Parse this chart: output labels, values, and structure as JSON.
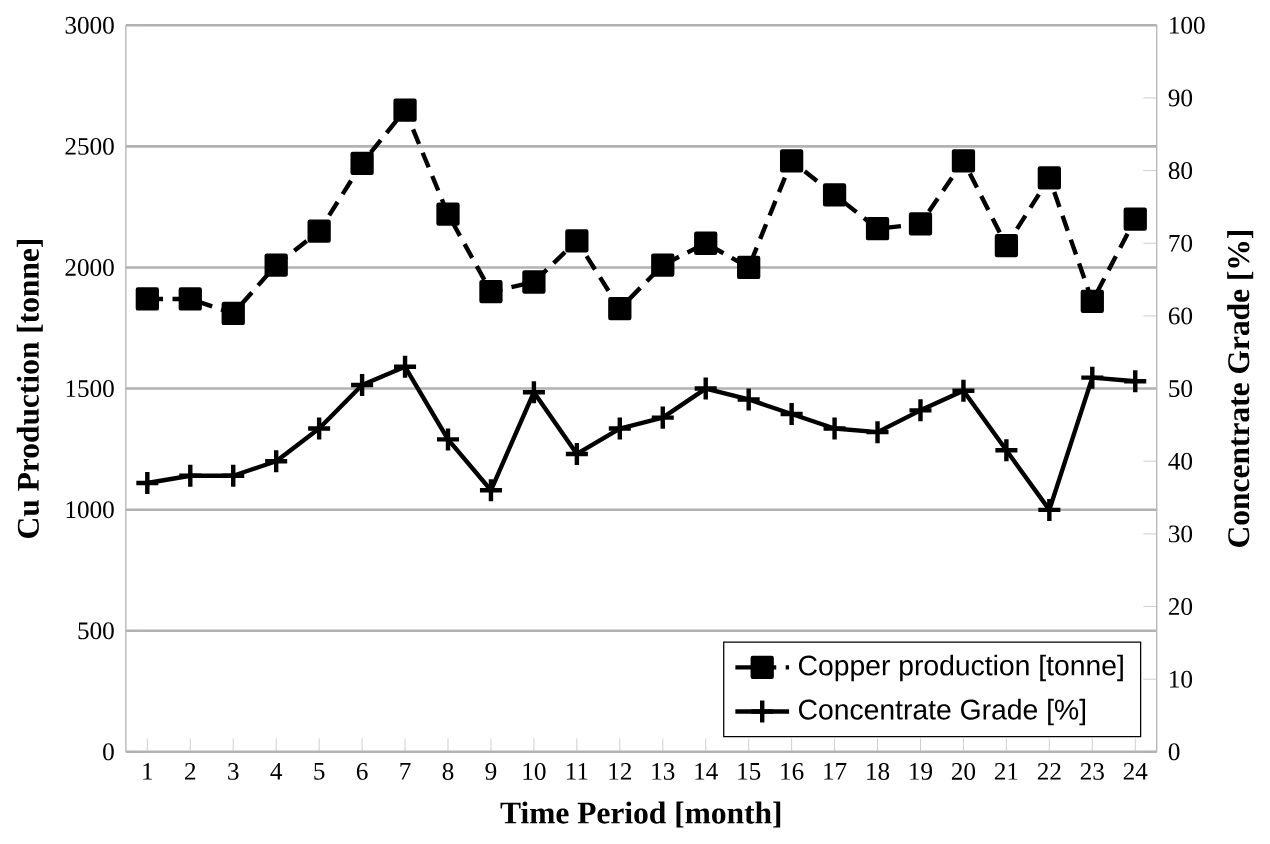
{
  "chart_data": {
    "type": "line",
    "xlabel": "Time Period [month]",
    "ylabel": "Cu Production [tonne]",
    "y2label": "Concentrate Grade [%]",
    "categories": [
      "1",
      "2",
      "3",
      "4",
      "5",
      "6",
      "7",
      "8",
      "9",
      "10",
      "11",
      "12",
      "13",
      "14",
      "15",
      "16",
      "17",
      "18",
      "19",
      "20",
      "21",
      "22",
      "23",
      "24"
    ],
    "series": [
      {
        "name": "Copper production [tonne]",
        "color": "#000000",
        "marker": "square",
        "line_style": "dashed",
        "values": [
          1870,
          1870,
          1810,
          2010,
          2150,
          2430,
          2650,
          2220,
          1900,
          1940,
          2110,
          1830,
          2010,
          2100,
          2000,
          2440,
          2300,
          2160,
          2180,
          2440,
          2090,
          2370,
          1860,
          2200
        ]
      },
      {
        "name": "Concentrate Grade [%]",
        "color": "#000000",
        "marker": "cross",
        "line_style": "solid",
        "axis": "y2",
        "values": [
          37,
          38,
          38,
          40,
          44.5,
          50.5,
          53,
          43,
          36,
          49.5,
          41,
          44.5,
          46,
          50,
          48.5,
          46.5,
          44.5,
          44,
          47,
          49.7,
          41.5,
          33.3,
          51.5,
          51
        ]
      }
    ],
    "ylim": [
      0,
      3000
    ],
    "yticks": [
      0,
      500,
      1000,
      1500,
      2000,
      2500,
      3000
    ],
    "y2lim": [
      0,
      100
    ],
    "y2ticks": [
      0,
      10,
      20,
      30,
      40,
      50,
      60,
      70,
      80,
      90,
      100
    ],
    "grid": "y",
    "legend": "bottom right"
  }
}
